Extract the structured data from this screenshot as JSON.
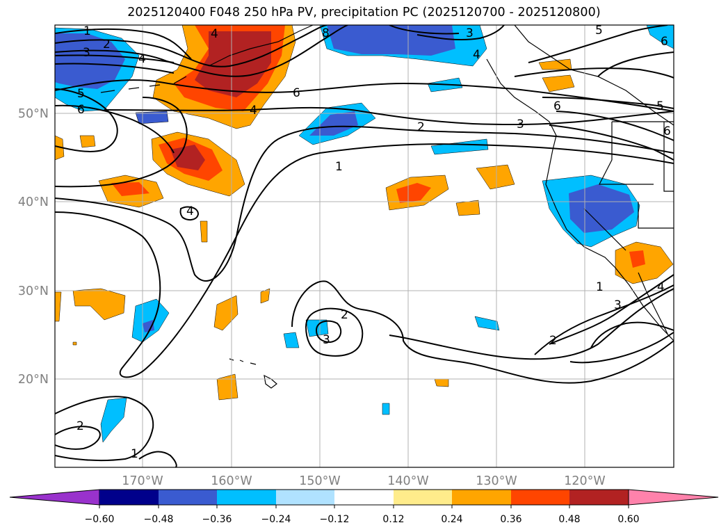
{
  "title": "2025120400 F048 250 hPa PV, precipitation PC (2025120700 - 2025120800)",
  "axes": {
    "latitude_labels": [
      "50°N",
      "40°N",
      "30°N",
      "20°N"
    ],
    "longitude_labels": [
      "170°W",
      "160°W",
      "150°W",
      "140°W",
      "130°W",
      "120°W"
    ]
  },
  "colorbar": {
    "tick_labels": [
      "−0.60",
      "−0.48",
      "−0.36",
      "−0.24",
      "−0.12",
      "0.12",
      "0.24",
      "0.36",
      "0.48",
      "0.60"
    ],
    "colors": [
      "#9932cc",
      "#00008b",
      "#3a5bd0",
      "#00bfff",
      "#b0e2ff",
      "#ffffff",
      "#ffec8b",
      "#ffa500",
      "#ff4500",
      "#b22222",
      "#ff82ab"
    ]
  },
  "contour_labels": [
    {
      "label": "1"
    },
    {
      "label": "2"
    },
    {
      "label": "3"
    },
    {
      "label": "4"
    },
    {
      "label": "5"
    },
    {
      "label": "6"
    },
    {
      "label": "4"
    },
    {
      "label": "6"
    },
    {
      "label": "4"
    },
    {
      "label": "8"
    },
    {
      "label": "3"
    },
    {
      "label": "4"
    },
    {
      "label": "5"
    },
    {
      "label": "6"
    },
    {
      "label": "2"
    },
    {
      "label": "3"
    },
    {
      "label": "6"
    },
    {
      "label": "5"
    },
    {
      "label": "6"
    },
    {
      "label": "1"
    },
    {
      "label": "4"
    },
    {
      "label": "2"
    },
    {
      "label": "3"
    },
    {
      "label": "1"
    },
    {
      "label": "3"
    },
    {
      "label": "4"
    },
    {
      "label": "2"
    },
    {
      "label": "2"
    },
    {
      "label": "1"
    }
  ],
  "legend_colors": {
    "contour": "#000000",
    "gridline": "#b0b0b0",
    "coastline": "#000000",
    "axis_label": "#808080"
  }
}
